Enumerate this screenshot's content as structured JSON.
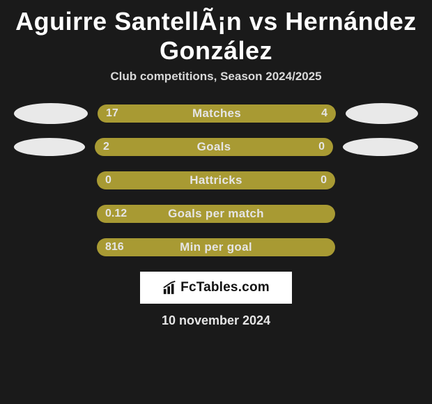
{
  "title": "Aguirre SantellÃ¡n vs Hernández González",
  "subtitle": "Club competitions, Season 2024/2025",
  "colors": {
    "left": "#a89a33",
    "right": "#a89a33",
    "bg": "#1a1a1a"
  },
  "rows": [
    {
      "label": "Matches",
      "left_val": "17",
      "right_val": "4",
      "left_pct": 78,
      "right_pct": 22,
      "left_color": "#a89a33",
      "right_color": "#a89a33",
      "ellipse": 1
    },
    {
      "label": "Goals",
      "left_val": "2",
      "right_val": "0",
      "left_pct": 100,
      "right_pct": 0,
      "left_color": "#a89a33",
      "right_color": "#a89a33",
      "ellipse": 2
    },
    {
      "label": "Hattricks",
      "left_val": "0",
      "right_val": "0",
      "left_pct": 100,
      "right_pct": 0,
      "left_color": "#a89a33",
      "right_color": "#a89a33",
      "ellipse": 0
    },
    {
      "label": "Goals per match",
      "left_val": "0.12",
      "right_val": "",
      "left_pct": 100,
      "right_pct": 0,
      "left_color": "#a89a33",
      "right_color": "#a89a33",
      "ellipse": 0
    },
    {
      "label": "Min per goal",
      "left_val": "816",
      "right_val": "",
      "left_pct": 100,
      "right_pct": 0,
      "left_color": "#a89a33",
      "right_color": "#a89a33",
      "ellipse": 0
    }
  ],
  "logo_text": "FcTables.com",
  "date": "10 november 2024"
}
